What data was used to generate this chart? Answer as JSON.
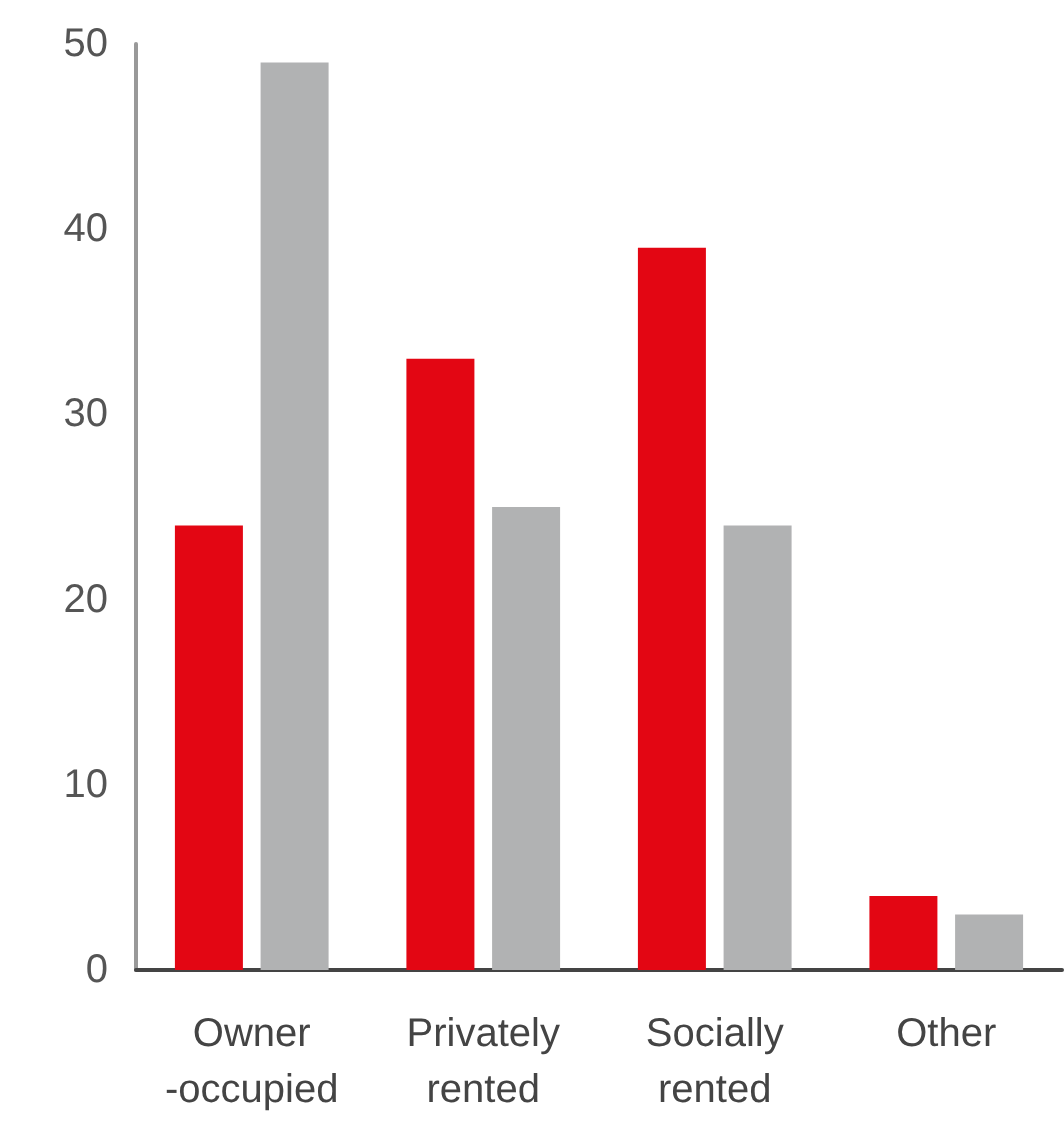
{
  "chart_data": {
    "type": "bar",
    "categories": [
      "Owner\n-occupied",
      "Privately\nrented",
      "Socially\nrented",
      "Other"
    ],
    "series": [
      {
        "color": "#e30613",
        "values": [
          24,
          33,
          39,
          4
        ]
      },
      {
        "color": "#b1b2b3",
        "values": [
          49,
          25,
          24,
          3
        ]
      }
    ],
    "ylim": [
      0,
      50
    ],
    "yticks": [
      0,
      10,
      20,
      30,
      40,
      50
    ]
  }
}
